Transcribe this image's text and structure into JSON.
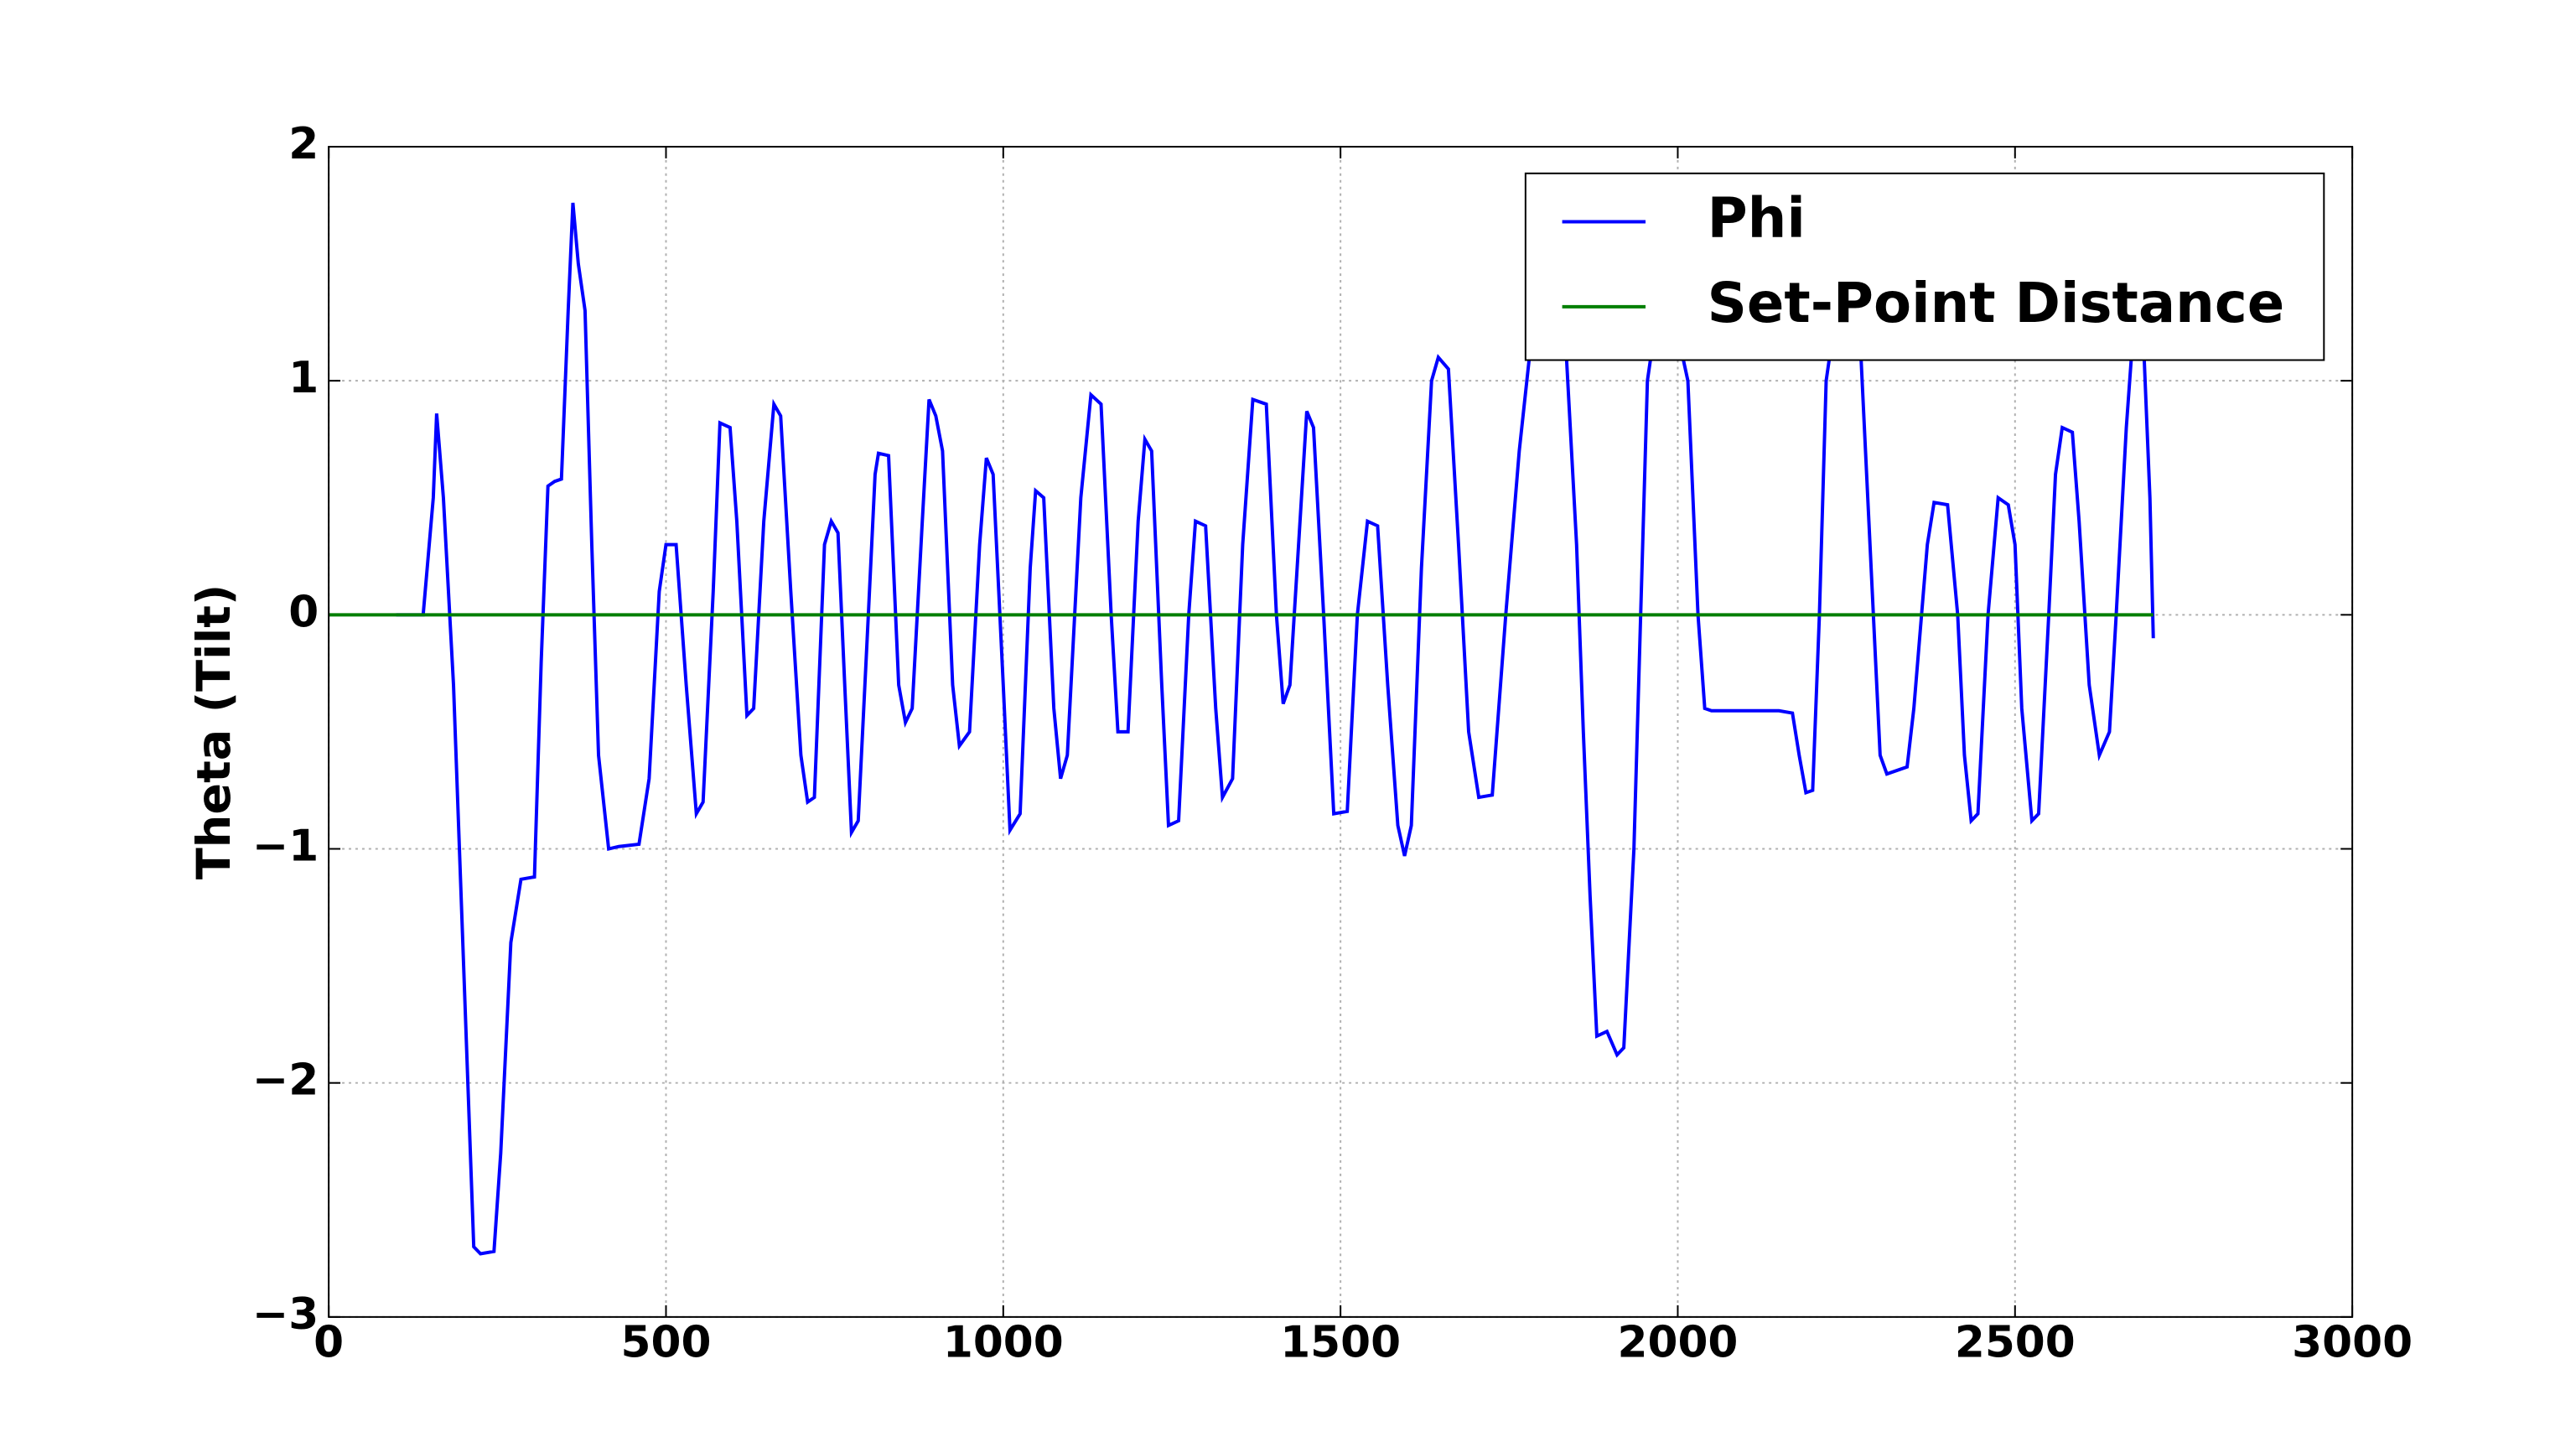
{
  "chart_data": {
    "type": "line",
    "y_label": "Theta (Tilt)",
    "xlim": [
      0,
      3000
    ],
    "xticks": [
      0,
      500,
      1000,
      1500,
      2000,
      2500,
      3000
    ],
    "ylim": [
      -3,
      2
    ],
    "yticks": [
      {
        "value": -3,
        "label": "−3"
      },
      {
        "value": -2,
        "label": "−2"
      },
      {
        "value": -1,
        "label": "−1"
      },
      0,
      1,
      2
    ],
    "grid": true,
    "legend": "upper right",
    "series": [
      {
        "name": "Phi",
        "color": "#0000ff",
        "x": [
          100,
          140,
          155,
          160,
          170,
          185,
          200,
          215,
          225,
          245,
          255,
          270,
          285,
          305,
          315,
          325,
          335,
          345,
          355,
          362,
          370,
          380,
          390,
          400,
          415,
          430,
          460,
          475,
          490,
          500,
          515,
          530,
          545,
          555,
          570,
          580,
          595,
          605,
          620,
          630,
          645,
          660,
          670,
          685,
          700,
          710,
          720,
          735,
          745,
          755,
          765,
          775,
          785,
          800,
          810,
          815,
          830,
          845,
          855,
          865,
          880,
          890,
          900,
          910,
          925,
          935,
          950,
          965,
          975,
          985,
          1000,
          1010,
          1025,
          1040,
          1048,
          1060,
          1075,
          1085,
          1095,
          1115,
          1130,
          1145,
          1160,
          1170,
          1185,
          1200,
          1210,
          1220,
          1235,
          1245,
          1260,
          1275,
          1285,
          1300,
          1315,
          1325,
          1340,
          1355,
          1370,
          1390,
          1405,
          1415,
          1425,
          1440,
          1450,
          1460,
          1475,
          1490,
          1510,
          1525,
          1540,
          1555,
          1570,
          1585,
          1595,
          1605,
          1620,
          1635,
          1645,
          1660,
          1675,
          1690,
          1705,
          1725,
          1745,
          1765,
          1780,
          1800,
          1820,
          1835,
          1850,
          1860,
          1870,
          1880,
          1895,
          1910,
          1920,
          1935,
          1945,
          1955,
          1965,
          2000,
          2015,
          2030,
          2040,
          2050,
          2150,
          2170,
          2180,
          2190,
          2200,
          2210,
          2220,
          2230,
          2270,
          2285,
          2300,
          2310,
          2340,
          2350,
          2370,
          2380,
          2400,
          2415,
          2425,
          2435,
          2445,
          2460,
          2475,
          2490,
          2500,
          2510,
          2525,
          2535,
          2550,
          2560,
          2570,
          2585,
          2595,
          2610,
          2625,
          2640,
          2650,
          2665,
          2675,
          2690,
          2700,
          2705
        ],
        "values": [
          0,
          0,
          0.5,
          0.86,
          0.5,
          -0.3,
          -1.5,
          -2.7,
          -2.73,
          -2.72,
          -2.3,
          -1.4,
          -1.13,
          -1.12,
          -0.2,
          0.55,
          0.57,
          0.58,
          1.3,
          1.76,
          1.5,
          1.3,
          0.3,
          -0.6,
          -1.0,
          -0.99,
          -0.98,
          -0.7,
          0.1,
          0.3,
          0.3,
          -0.3,
          -0.85,
          -0.8,
          0.1,
          0.82,
          0.8,
          0.4,
          -0.43,
          -0.4,
          0.4,
          0.9,
          0.85,
          0.1,
          -0.6,
          -0.8,
          -0.78,
          0.3,
          0.4,
          0.35,
          -0.3,
          -0.93,
          -0.88,
          0.0,
          0.6,
          0.69,
          0.68,
          -0.3,
          -0.46,
          -0.4,
          0.4,
          0.92,
          0.85,
          0.7,
          -0.3,
          -0.56,
          -0.5,
          0.3,
          0.67,
          0.6,
          -0.3,
          -0.92,
          -0.85,
          0.2,
          0.53,
          0.5,
          -0.4,
          -0.7,
          -0.6,
          0.5,
          0.94,
          0.9,
          0.0,
          -0.5,
          -0.5,
          0.4,
          0.75,
          0.7,
          -0.3,
          -0.9,
          -0.88,
          0.0,
          0.4,
          0.38,
          -0.4,
          -0.78,
          -0.7,
          0.3,
          0.92,
          0.9,
          0.0,
          -0.38,
          -0.3,
          0.4,
          0.87,
          0.8,
          0.0,
          -0.85,
          -0.84,
          0.0,
          0.4,
          0.38,
          -0.3,
          -0.9,
          -1.03,
          -0.9,
          0.2,
          1.0,
          1.1,
          1.05,
          0.3,
          -0.5,
          -0.78,
          -0.77,
          0.0,
          0.7,
          1.1,
          1.15,
          1.15,
          1.1,
          0.3,
          -0.5,
          -1.2,
          -1.8,
          -1.78,
          -1.88,
          -1.85,
          -1.0,
          0.0,
          1.0,
          1.2,
          1.2,
          1.0,
          0.0,
          -0.4,
          -0.41,
          -0.41,
          -0.42,
          -0.6,
          -0.76,
          -0.75,
          0.0,
          1.0,
          1.2,
          1.2,
          0.3,
          -0.6,
          -0.68,
          -0.65,
          -0.4,
          0.3,
          0.48,
          0.47,
          0.0,
          -0.6,
          -0.88,
          -0.85,
          0.0,
          0.5,
          0.47,
          0.3,
          -0.4,
          -0.88,
          -0.85,
          0.0,
          0.6,
          0.8,
          0.78,
          0.4,
          -0.3,
          -0.6,
          -0.5,
          0.0,
          0.8,
          1.2,
          1.2,
          0.5,
          -0.1
        ]
      },
      {
        "name": "Set-Point Distance",
        "color": "#007f00",
        "x": [
          0,
          2705
        ],
        "values": [
          0,
          0
        ]
      }
    ]
  }
}
